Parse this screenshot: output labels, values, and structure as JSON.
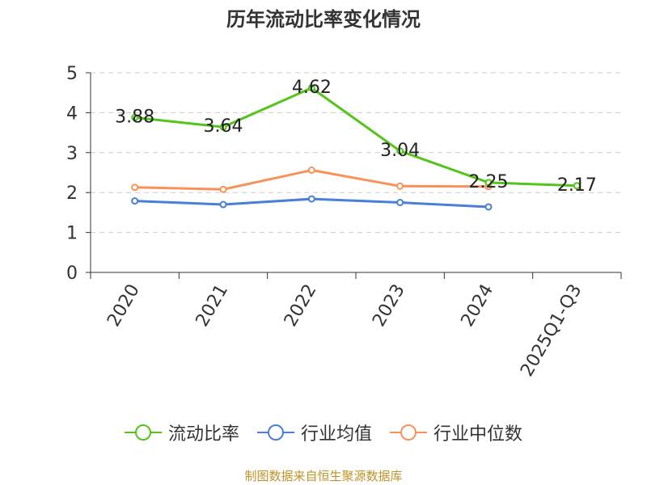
{
  "title": "历年流动比率变化情况",
  "source": "制图数据来自恒生聚源数据库",
  "colors": {
    "axis": "#333333",
    "grid": "#cccccc",
    "series": [
      "#52c41a",
      "#4a7fd8",
      "#f79259"
    ]
  },
  "chart_data": {
    "type": "line",
    "title": "历年流动比率变化情况",
    "categories": [
      "2020",
      "2021",
      "2022",
      "2023",
      "2024",
      "2025Q1-Q3"
    ],
    "ylim": [
      0,
      5
    ],
    "yticks": [
      0,
      1,
      2,
      3,
      4,
      5
    ],
    "grid": true,
    "legend_position": "bottom",
    "series": [
      {
        "name": "流动比率",
        "values": [
          3.88,
          3.64,
          4.62,
          3.04,
          2.25,
          2.17
        ],
        "data_labels": [
          "3.88",
          "3.64",
          "4.62",
          "3.04",
          "2.25",
          "2.17"
        ]
      },
      {
        "name": "行业均值",
        "values": [
          1.79,
          1.7,
          1.84,
          1.75,
          1.64,
          null
        ]
      },
      {
        "name": "行业中位数",
        "values": [
          2.13,
          2.08,
          2.56,
          2.16,
          2.15,
          null
        ]
      }
    ]
  }
}
